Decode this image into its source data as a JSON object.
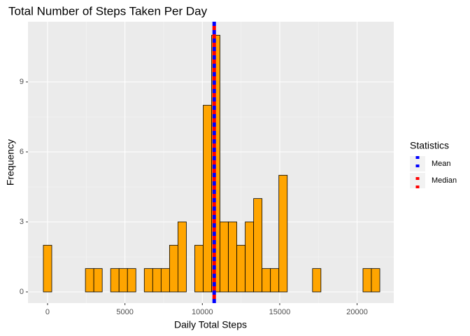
{
  "chart_data": {
    "type": "histogram",
    "title": "Total Number of Steps Taken Per Day",
    "x_label": "Daily Total Steps",
    "y_label": "Frequency",
    "bins": [
      -271.7,
      271.7,
      815.2,
      1358.6,
      1902.1,
      2445.5,
      2988.9,
      3532.4,
      4075.8,
      4619.2,
      5162.7,
      5706.1,
      6249.5,
      6793.0,
      7336.4,
      7879.8,
      8423.3,
      8966.7,
      9510.2,
      10053.6,
      10597.0,
      11140.5,
      11683.9,
      12227.3,
      12770.8,
      13314.2,
      13857.6,
      14401.1,
      14944.5,
      15487.9,
      16031.4,
      16574.8,
      17118.3,
      17661.7,
      18205.1,
      18748.6,
      19292.0,
      19835.4,
      20378.9,
      20922.3,
      21465.7
    ],
    "counts": [
      2,
      0,
      0,
      0,
      0,
      1,
      1,
      0,
      1,
      1,
      1,
      0,
      1,
      1,
      1,
      2,
      3,
      0,
      2,
      8,
      11,
      3,
      3,
      2,
      3,
      4,
      1,
      1,
      5,
      0,
      0,
      0,
      1,
      0,
      0,
      0,
      0,
      0,
      1,
      1
    ],
    "color": "#ffa500",
    "edge_color": "#000000",
    "xlim": [
      -1265,
      22368
    ],
    "ylim": [
      -0.48,
      11.58
    ],
    "xticks": [
      0,
      5000,
      10000,
      15000,
      20000
    ],
    "yticks": [
      0,
      3,
      6,
      9
    ],
    "grid": true,
    "legend_title": "Statistics",
    "legend": "right",
    "lines": [
      {
        "name": "Mean",
        "value": 10766,
        "color": "#0000ff"
      },
      {
        "name": "Median",
        "value": 10766,
        "color": "#ff0000"
      }
    ]
  }
}
